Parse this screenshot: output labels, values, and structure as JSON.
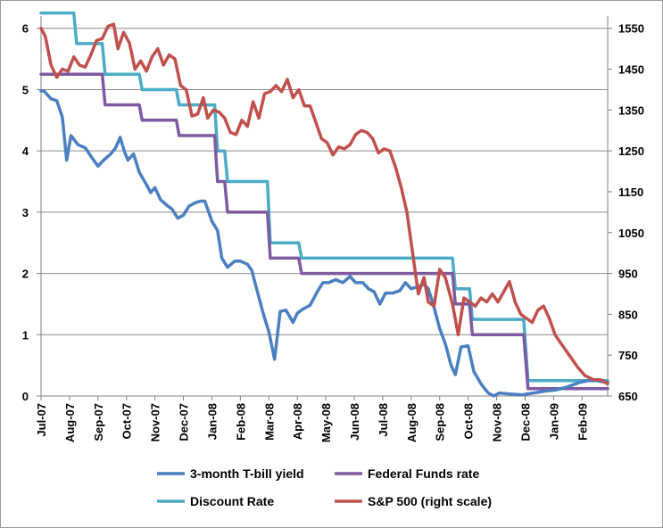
{
  "chart_data": {
    "type": "line",
    "x_tick_labels": [
      "Jul-07",
      "Aug-07",
      "Sep-07",
      "Oct-07",
      "Nov-07",
      "Dec-07",
      "Jan-08",
      "Feb-08",
      "Mar-08",
      "Apr-08",
      "May-08",
      "Jun-08",
      "Jul-08",
      "Aug-08",
      "Sep-08",
      "Oct-08",
      "Nov-08",
      "Dec-08",
      "Jan-09",
      "Feb-09"
    ],
    "x_range": [
      0,
      19.9
    ],
    "y_left": {
      "ticks": [
        0,
        1,
        2,
        3,
        4,
        5,
        6
      ],
      "range": [
        0,
        6.2
      ]
    },
    "y_right": {
      "ticks": [
        650,
        750,
        850,
        950,
        1050,
        1150,
        1250,
        1350,
        1450,
        1550
      ],
      "range": [
        650,
        1580
      ]
    },
    "grid": "horizontal",
    "legend_placement": "bottom",
    "series": [
      {
        "name": "3-month T-bill yield",
        "axis": "left",
        "color": "#4a7fc0",
        "points": [
          [
            0,
            4.98
          ],
          [
            0.12,
            4.97
          ],
          [
            0.35,
            4.85
          ],
          [
            0.55,
            4.82
          ],
          [
            0.75,
            4.55
          ],
          [
            0.9,
            3.85
          ],
          [
            1.05,
            4.25
          ],
          [
            1.3,
            4.1
          ],
          [
            1.55,
            4.05
          ],
          [
            1.8,
            3.88
          ],
          [
            2,
            3.75
          ],
          [
            2.2,
            3.85
          ],
          [
            2.45,
            3.95
          ],
          [
            2.62,
            4.05
          ],
          [
            2.78,
            4.22
          ],
          [
            2.92,
            4.0
          ],
          [
            3.05,
            3.85
          ],
          [
            3.25,
            3.95
          ],
          [
            3.45,
            3.65
          ],
          [
            3.7,
            3.45
          ],
          [
            3.85,
            3.32
          ],
          [
            4.0,
            3.4
          ],
          [
            4.2,
            3.2
          ],
          [
            4.45,
            3.1
          ],
          [
            4.6,
            3.05
          ],
          [
            4.8,
            2.9
          ],
          [
            5.0,
            2.95
          ],
          [
            5.2,
            3.1
          ],
          [
            5.4,
            3.15
          ],
          [
            5.6,
            3.18
          ],
          [
            5.75,
            3.18
          ],
          [
            5.85,
            3.05
          ],
          [
            6.0,
            2.85
          ],
          [
            6.2,
            2.7
          ],
          [
            6.35,
            2.25
          ],
          [
            6.55,
            2.1
          ],
          [
            6.8,
            2.2
          ],
          [
            7.0,
            2.2
          ],
          [
            7.25,
            2.15
          ],
          [
            7.4,
            2.05
          ],
          [
            7.6,
            1.7
          ],
          [
            7.8,
            1.35
          ],
          [
            8.0,
            1.05
          ],
          [
            8.2,
            0.6
          ],
          [
            8.4,
            1.38
          ],
          [
            8.6,
            1.4
          ],
          [
            8.85,
            1.2
          ],
          [
            9.0,
            1.35
          ],
          [
            9.2,
            1.42
          ],
          [
            9.45,
            1.48
          ],
          [
            9.7,
            1.7
          ],
          [
            9.9,
            1.85
          ],
          [
            10.1,
            1.85
          ],
          [
            10.35,
            1.9
          ],
          [
            10.6,
            1.85
          ],
          [
            10.85,
            1.95
          ],
          [
            11.05,
            1.85
          ],
          [
            11.3,
            1.85
          ],
          [
            11.5,
            1.75
          ],
          [
            11.7,
            1.7
          ],
          [
            11.9,
            1.5
          ],
          [
            12.1,
            1.68
          ],
          [
            12.35,
            1.68
          ],
          [
            12.6,
            1.72
          ],
          [
            12.8,
            1.85
          ],
          [
            13.0,
            1.75
          ],
          [
            13.2,
            1.78
          ],
          [
            13.45,
            1.82
          ],
          [
            13.6,
            1.75
          ],
          [
            13.8,
            1.45
          ],
          [
            14.0,
            1.1
          ],
          [
            14.2,
            0.85
          ],
          [
            14.4,
            0.5
          ],
          [
            14.55,
            0.35
          ],
          [
            14.75,
            0.8
          ],
          [
            15.0,
            0.82
          ],
          [
            15.2,
            0.4
          ],
          [
            15.45,
            0.2
          ],
          [
            15.7,
            0.05
          ],
          [
            15.9,
            0.0
          ],
          [
            16.1,
            0.05
          ],
          [
            16.5,
            0.03
          ],
          [
            16.9,
            0.02
          ],
          [
            17.3,
            0.05
          ],
          [
            17.7,
            0.08
          ],
          [
            18.1,
            0.1
          ],
          [
            18.5,
            0.15
          ],
          [
            18.9,
            0.22
          ],
          [
            19.2,
            0.25
          ],
          [
            19.5,
            0.25
          ],
          [
            19.9,
            0.22
          ]
        ]
      },
      {
        "name": "Federal Funds rate",
        "axis": "left",
        "color": "#7e5aa2",
        "points": [
          [
            0,
            5.25
          ],
          [
            2.15,
            5.25
          ],
          [
            2.25,
            4.75
          ],
          [
            3.45,
            4.75
          ],
          [
            3.55,
            4.5
          ],
          [
            4.75,
            4.5
          ],
          [
            4.85,
            4.25
          ],
          [
            6.1,
            4.25
          ],
          [
            6.2,
            3.5
          ],
          [
            6.45,
            3.5
          ],
          [
            6.55,
            3.0
          ],
          [
            7.95,
            3.0
          ],
          [
            8.05,
            2.25
          ],
          [
            9.05,
            2.25
          ],
          [
            9.15,
            2.0
          ],
          [
            14.45,
            2.0
          ],
          [
            14.55,
            1.5
          ],
          [
            15.05,
            1.5
          ],
          [
            15.15,
            1.0
          ],
          [
            16.95,
            1.0
          ],
          [
            17.1,
            0.12
          ],
          [
            19.9,
            0.12
          ]
        ]
      },
      {
        "name": "Discount Rate",
        "axis": "left",
        "color": "#4bacc6",
        "points": [
          [
            0,
            6.25
          ],
          [
            1.15,
            6.25
          ],
          [
            1.25,
            5.75
          ],
          [
            2.15,
            5.75
          ],
          [
            2.25,
            5.25
          ],
          [
            3.45,
            5.25
          ],
          [
            3.55,
            5.0
          ],
          [
            4.75,
            5.0
          ],
          [
            4.85,
            4.75
          ],
          [
            6.1,
            4.75
          ],
          [
            6.2,
            4.0
          ],
          [
            6.45,
            4.0
          ],
          [
            6.55,
            3.5
          ],
          [
            7.95,
            3.5
          ],
          [
            8.05,
            2.5
          ],
          [
            9.05,
            2.5
          ],
          [
            9.15,
            2.25
          ],
          [
            14.45,
            2.25
          ],
          [
            14.55,
            1.75
          ],
          [
            15.05,
            1.75
          ],
          [
            15.15,
            1.25
          ],
          [
            16.95,
            1.25
          ],
          [
            17.1,
            0.25
          ],
          [
            19.9,
            0.25
          ]
        ]
      },
      {
        "name": "S&P 500 (right scale)",
        "axis": "right",
        "color": "#c0504d",
        "points": [
          [
            0,
            1550
          ],
          [
            0.15,
            1530
          ],
          [
            0.35,
            1460
          ],
          [
            0.55,
            1430
          ],
          [
            0.75,
            1450
          ],
          [
            0.95,
            1445
          ],
          [
            1.15,
            1480
          ],
          [
            1.35,
            1460
          ],
          [
            1.55,
            1455
          ],
          [
            1.75,
            1485
          ],
          [
            1.95,
            1520
          ],
          [
            2.15,
            1525
          ],
          [
            2.35,
            1555
          ],
          [
            2.55,
            1560
          ],
          [
            2.7,
            1500
          ],
          [
            2.9,
            1540
          ],
          [
            3.1,
            1515
          ],
          [
            3.3,
            1450
          ],
          [
            3.5,
            1470
          ],
          [
            3.7,
            1445
          ],
          [
            3.9,
            1480
          ],
          [
            4.1,
            1500
          ],
          [
            4.3,
            1460
          ],
          [
            4.5,
            1485
          ],
          [
            4.7,
            1475
          ],
          [
            4.9,
            1410
          ],
          [
            5.1,
            1400
          ],
          [
            5.3,
            1335
          ],
          [
            5.5,
            1340
          ],
          [
            5.7,
            1380
          ],
          [
            5.85,
            1330
          ],
          [
            6.05,
            1350
          ],
          [
            6.25,
            1345
          ],
          [
            6.45,
            1330
          ],
          [
            6.65,
            1295
          ],
          [
            6.85,
            1290
          ],
          [
            7.05,
            1325
          ],
          [
            7.25,
            1310
          ],
          [
            7.45,
            1370
          ],
          [
            7.65,
            1330
          ],
          [
            7.85,
            1390
          ],
          [
            8.05,
            1395
          ],
          [
            8.25,
            1410
          ],
          [
            8.45,
            1395
          ],
          [
            8.65,
            1425
          ],
          [
            8.85,
            1380
          ],
          [
            9.05,
            1400
          ],
          [
            9.25,
            1360
          ],
          [
            9.45,
            1360
          ],
          [
            9.65,
            1320
          ],
          [
            9.85,
            1280
          ],
          [
            10.05,
            1270
          ],
          [
            10.25,
            1240
          ],
          [
            10.45,
            1260
          ],
          [
            10.65,
            1255
          ],
          [
            10.85,
            1265
          ],
          [
            11.05,
            1290
          ],
          [
            11.25,
            1300
          ],
          [
            11.45,
            1295
          ],
          [
            11.65,
            1280
          ],
          [
            11.85,
            1245
          ],
          [
            12.05,
            1255
          ],
          [
            12.25,
            1250
          ],
          [
            12.45,
            1210
          ],
          [
            12.65,
            1160
          ],
          [
            12.85,
            1100
          ],
          [
            13.05,
            1000
          ],
          [
            13.25,
            900
          ],
          [
            13.45,
            940
          ],
          [
            13.6,
            880
          ],
          [
            13.8,
            870
          ],
          [
            14.0,
            960
          ],
          [
            14.2,
            940
          ],
          [
            14.45,
            875
          ],
          [
            14.65,
            800
          ],
          [
            14.85,
            890
          ],
          [
            15.05,
            880
          ],
          [
            15.25,
            870
          ],
          [
            15.45,
            890
          ],
          [
            15.65,
            880
          ],
          [
            15.85,
            900
          ],
          [
            16.05,
            880
          ],
          [
            16.25,
            905
          ],
          [
            16.45,
            930
          ],
          [
            16.65,
            880
          ],
          [
            16.85,
            850
          ],
          [
            17.05,
            840
          ],
          [
            17.25,
            830
          ],
          [
            17.45,
            860
          ],
          [
            17.65,
            870
          ],
          [
            17.85,
            840
          ],
          [
            18.05,
            800
          ],
          [
            18.25,
            780
          ],
          [
            18.45,
            760
          ],
          [
            18.65,
            740
          ],
          [
            18.85,
            720
          ],
          [
            19.1,
            700
          ],
          [
            19.4,
            690
          ],
          [
            19.65,
            690
          ],
          [
            19.9,
            680
          ]
        ]
      }
    ]
  }
}
